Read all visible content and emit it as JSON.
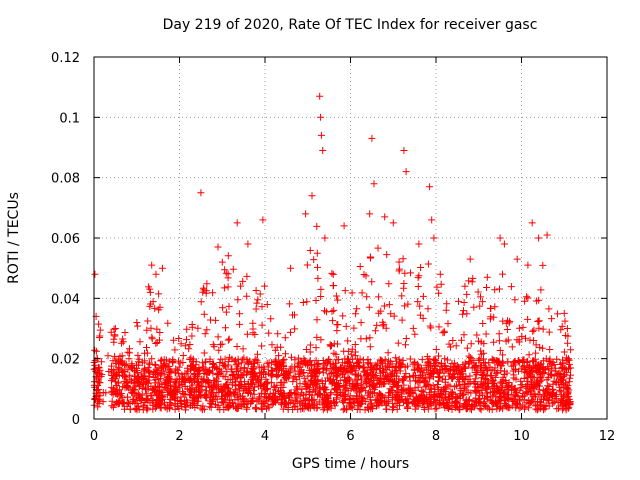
{
  "chart_data": {
    "type": "scatter",
    "title": "Day 219 of 2020, Rate Of TEC Index for receiver gasc",
    "xlabel": "GPS time / hours",
    "ylabel": "ROTI / TECUs",
    "xlim": [
      0,
      12
    ],
    "ylim": [
      0,
      0.12
    ],
    "xticks": [
      0,
      2,
      4,
      6,
      8,
      10,
      12
    ],
    "xtick_labels": [
      "0",
      "2",
      "4",
      "6",
      "8",
      "10",
      "12"
    ],
    "yticks": [
      0,
      0.02,
      0.04,
      0.06,
      0.08,
      0.1,
      0.12
    ],
    "ytick_labels": [
      "0",
      "0.02",
      "0.04",
      "0.06",
      "0.08",
      "0.1",
      "0.12"
    ],
    "grid": true,
    "marker": "+",
    "marker_color": "#ff0000",
    "series": [
      {
        "name": "ROTI",
        "x": [
          0.02,
          0.05,
          0.08,
          0.12,
          0.5,
          0.65,
          1.0,
          1.35,
          1.45,
          1.6,
          2.5,
          2.9,
          3.0,
          3.35,
          3.6,
          3.95,
          4.6,
          4.95,
          5.1,
          5.28,
          5.3,
          5.32,
          5.35,
          5.4,
          5.85,
          6.45,
          6.5,
          6.55,
          6.8,
          7.0,
          7.25,
          7.3,
          7.6,
          7.85,
          7.9,
          7.95,
          8.1,
          8.8,
          9.2,
          9.5,
          9.6,
          9.9,
          10.15,
          10.25,
          10.4,
          10.6,
          11.0,
          11.1
        ],
        "y": [
          0.048,
          0.034,
          0.02,
          0.012,
          0.03,
          0.016,
          0.032,
          0.051,
          0.048,
          0.05,
          0.075,
          0.057,
          0.052,
          0.065,
          0.058,
          0.066,
          0.05,
          0.068,
          0.074,
          0.107,
          0.1,
          0.094,
          0.089,
          0.06,
          0.064,
          0.068,
          0.093,
          0.078,
          0.067,
          0.065,
          0.089,
          0.082,
          0.058,
          0.077,
          0.066,
          0.06,
          0.048,
          0.053,
          0.047,
          0.06,
          0.058,
          0.053,
          0.051,
          0.065,
          0.06,
          0.061,
          0.035,
          0.02
        ]
      }
    ]
  }
}
